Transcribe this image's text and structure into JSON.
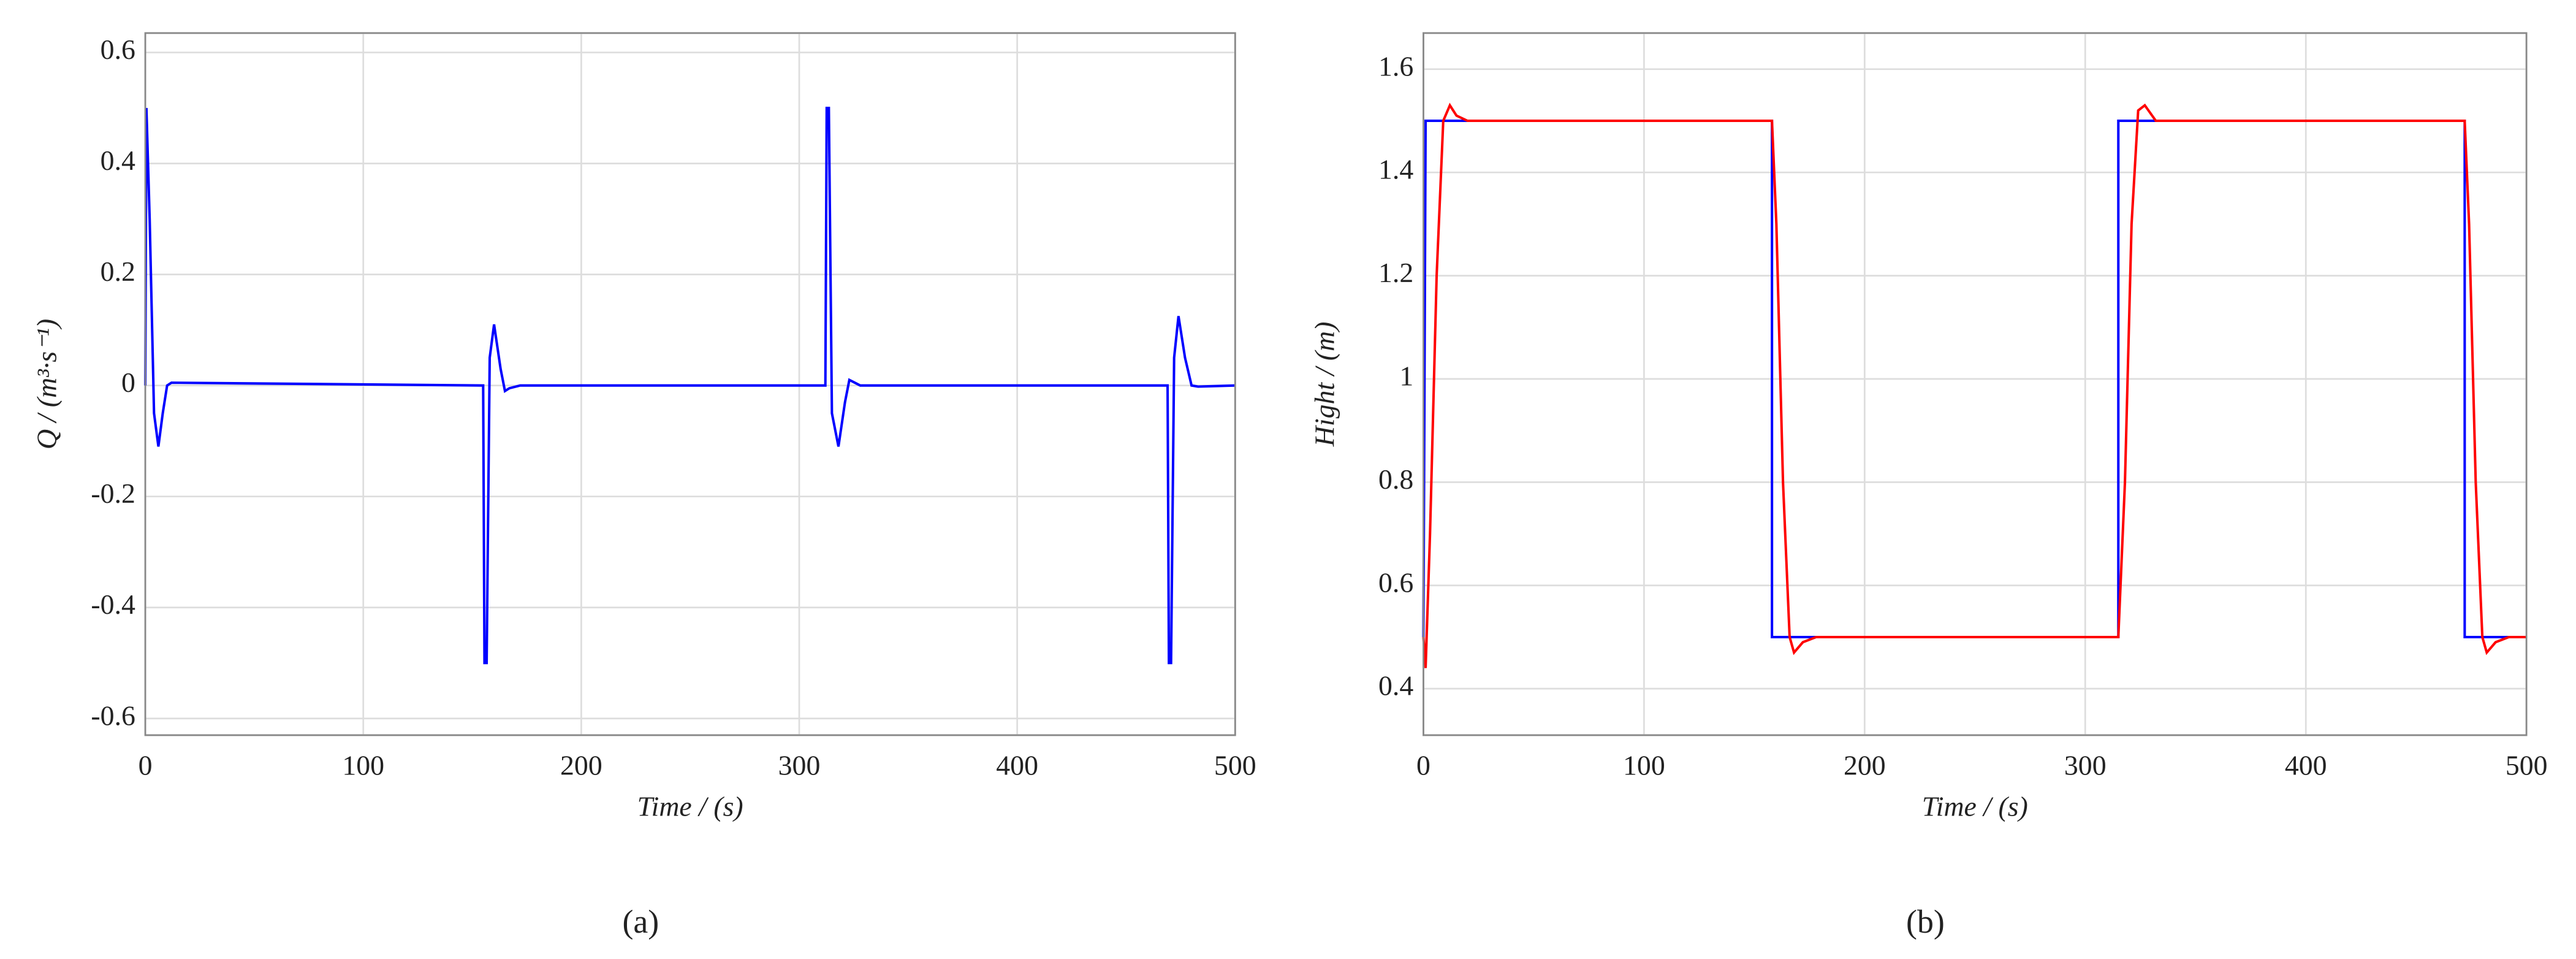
{
  "chart_data": [
    {
      "type": "line",
      "caption": "(a)",
      "xlabel": "Time / (s)",
      "ylabel": "Q / (m³·s⁻¹)",
      "xlim": [
        0,
        500
      ],
      "ylim": [
        -0.63,
        0.635
      ],
      "xticks": [
        0,
        100,
        200,
        300,
        400,
        500
      ],
      "yticks": [
        -0.6,
        -0.4,
        -0.2,
        0,
        0.2,
        0.4,
        0.6
      ],
      "grid": true,
      "series": [
        {
          "color": "#0000ff",
          "x": [
            0,
            0.5,
            2,
            4,
            6,
            8,
            10,
            12,
            155,
            155.6,
            156.6,
            158,
            160,
            163,
            165,
            167,
            172,
            312,
            312.6,
            313.6,
            315,
            318,
            321,
            323,
            328,
            469,
            469.6,
            470.6,
            472,
            474,
            477,
            480,
            483,
            500
          ],
          "values": [
            0,
            0.5,
            0.3,
            -0.05,
            -0.11,
            -0.05,
            0,
            0.005,
            0,
            -0.5,
            -0.5,
            0.05,
            0.11,
            0.03,
            -0.01,
            -0.005,
            0,
            0,
            0.5,
            0.5,
            -0.05,
            -0.11,
            -0.03,
            0.01,
            0,
            0,
            -0.5,
            -0.5,
            0.05,
            0.125,
            0.05,
            0,
            -0.002,
            0
          ]
        }
      ]
    },
    {
      "type": "line",
      "caption": "(b)",
      "xlabel": "Time / (s)",
      "ylabel": "Hight / (m)",
      "xlim": [
        0,
        500
      ],
      "ylim": [
        0.31,
        1.67
      ],
      "xticks": [
        0,
        100,
        200,
        300,
        400,
        500
      ],
      "yticks": [
        0.4,
        0.6,
        0.8,
        1,
        1.2,
        1.4,
        1.6
      ],
      "grid": true,
      "series": [
        {
          "color": "#0000ff",
          "x": [
            0,
            1,
            158,
            158,
            315,
            315,
            472,
            472,
            500
          ],
          "values": [
            0.5,
            1.5,
            1.5,
            0.5,
            0.5,
            1.5,
            1.5,
            0.5,
            0.5
          ]
        },
        {
          "color": "#ff0000",
          "x": [
            0,
            1,
            3,
            6,
            9,
            12,
            15,
            20,
            158,
            160,
            163,
            166,
            168,
            172,
            178,
            315,
            318,
            321,
            324,
            327,
            332,
            472,
            474,
            477,
            480,
            482,
            486,
            492,
            500
          ],
          "values": [
            0.5,
            0.44,
            0.7,
            1.2,
            1.5,
            1.53,
            1.51,
            1.5,
            1.5,
            1.3,
            0.8,
            0.5,
            0.47,
            0.49,
            0.5,
            0.5,
            0.8,
            1.3,
            1.52,
            1.53,
            1.5,
            1.5,
            1.3,
            0.8,
            0.5,
            0.47,
            0.49,
            0.5,
            0.5
          ]
        }
      ]
    }
  ]
}
